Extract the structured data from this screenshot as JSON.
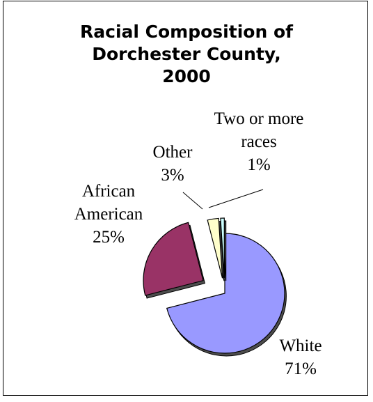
{
  "chart_data": {
    "type": "pie",
    "title": "Racial Composition of\nDorchester County,\n2000",
    "slices": [
      {
        "name": "White",
        "value": 71,
        "label": [
          "White",
          "71%"
        ],
        "color": "#9999ff"
      },
      {
        "name": "African American",
        "value": 25,
        "label": [
          "African",
          "American",
          "25%"
        ],
        "color": "#993366"
      },
      {
        "name": "Other",
        "value": 3,
        "label": [
          "Other",
          "3%"
        ],
        "color": "#ffffcc"
      },
      {
        "name": "Two or more races",
        "value": 1,
        "label": [
          "Two or more",
          "races",
          "1%"
        ],
        "color": "#ccffff"
      }
    ],
    "exploded": true,
    "legend": "none"
  }
}
